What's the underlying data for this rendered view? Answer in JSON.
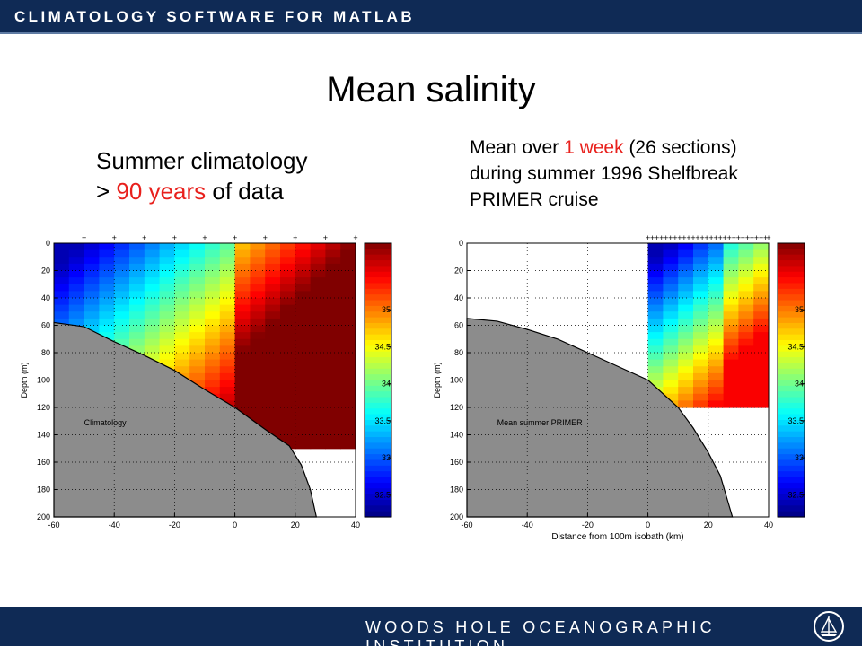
{
  "header": {
    "title": "CLIMATOLOGY SOFTWARE FOR MATLAB"
  },
  "footer": {
    "institution": "WOODS HOLE OCEANOGRAPHIC INSTITUTION",
    "logo_icon": "whoi-ship-icon"
  },
  "slide": {
    "title": "Mean salinity",
    "left_caption": {
      "line1": "Summer climatology",
      "line2_prefix": "> ",
      "line2_highlight": "90 years",
      "line2_suffix": " of data"
    },
    "right_caption": {
      "line1_prefix": "Mean over ",
      "line1_highlight": "1 week",
      "line1_suffix": " (26 sections)",
      "line2": "during summer 1996 Shelfbreak",
      "line3": "PRIMER cruise"
    }
  },
  "colors": {
    "bar": "#0f2a55",
    "highlight": "#e8201c",
    "bathymetry": "#8c8c8c"
  },
  "chart_data": [
    {
      "type": "heatmap",
      "annotation": "Climatology",
      "xlabel": "",
      "ylabel": "Depth (m)",
      "xlim": [
        -60,
        40
      ],
      "ylim": [
        200,
        0
      ],
      "x_ticks": [
        "-60",
        "-40",
        "-20",
        "0",
        "20",
        "40"
      ],
      "y_ticks": [
        "0",
        "20",
        "40",
        "60",
        "80",
        "100",
        "120",
        "140",
        "160",
        "180",
        "200"
      ],
      "colorbar_ticks": [
        "35",
        "34.5",
        "34",
        "33.5",
        "33",
        "32.5"
      ],
      "colorbar_range": [
        32.2,
        35.9
      ],
      "station_markers_x": [
        -50,
        -40,
        -30,
        -20,
        -10,
        0,
        10,
        20,
        30,
        40
      ],
      "data_extent": {
        "x": [
          -60,
          40
        ],
        "depth": [
          0,
          150
        ]
      },
      "bathymetry": [
        [
          -60,
          58
        ],
        [
          -50,
          61
        ],
        [
          -40,
          72
        ],
        [
          -30,
          82
        ],
        [
          -20,
          93
        ],
        [
          -10,
          107
        ],
        [
          0,
          120
        ],
        [
          10,
          136
        ],
        [
          18,
          148
        ],
        [
          22,
          162
        ],
        [
          25,
          180
        ],
        [
          27,
          200
        ]
      ]
    },
    {
      "type": "heatmap",
      "annotation": "Mean summer PRIMER",
      "xlabel": "Distance from 100m isobath (km)",
      "ylabel": "Depth (m)",
      "xlim": [
        -60,
        40
      ],
      "ylim": [
        200,
        0
      ],
      "x_ticks": [
        "-60",
        "-40",
        "-20",
        "0",
        "20",
        "40"
      ],
      "y_ticks": [
        "0",
        "20",
        "40",
        "60",
        "80",
        "100",
        "120",
        "140",
        "160",
        "180",
        "200"
      ],
      "colorbar_ticks": [
        "35",
        "34.5",
        "34",
        "33.5",
        "33",
        "32.5"
      ],
      "colorbar_range": [
        32.2,
        35.9
      ],
      "station_markers_x": [
        0,
        1.5,
        3,
        4.5,
        6,
        7.5,
        9,
        10.5,
        12,
        13.5,
        15,
        16.5,
        18,
        19.5,
        21,
        22.5,
        24,
        25.5,
        27,
        28.5,
        30,
        31.5,
        33,
        34.5,
        36,
        37.5,
        39,
        40
      ],
      "data_extent": {
        "x": [
          0,
          40
        ],
        "depth": [
          0,
          120
        ]
      },
      "bathymetry": [
        [
          -60,
          55
        ],
        [
          -50,
          57
        ],
        [
          -40,
          63
        ],
        [
          -30,
          70
        ],
        [
          -20,
          80
        ],
        [
          -10,
          90
        ],
        [
          0,
          100
        ],
        [
          10,
          120
        ],
        [
          15,
          135
        ],
        [
          20,
          153
        ],
        [
          24,
          170
        ],
        [
          26,
          185
        ],
        [
          28,
          200
        ]
      ]
    }
  ]
}
